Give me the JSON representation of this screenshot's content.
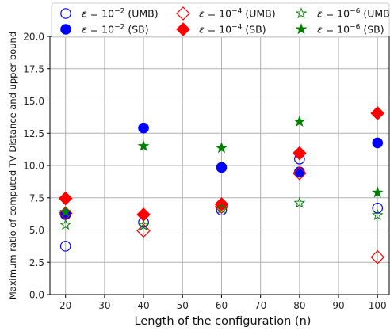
{
  "chart_data": {
    "type": "scatter",
    "xlabel": "Length of the configuration (n)",
    "ylabel": "Maximum ratio of computed TV Distance and upper bound",
    "xlim": [
      16,
      103
    ],
    "ylim": [
      0,
      20
    ],
    "xticks": [
      20,
      30,
      40,
      50,
      60,
      70,
      80,
      90,
      100
    ],
    "yticks": [
      0.0,
      2.5,
      5.0,
      7.5,
      10.0,
      12.5,
      15.0,
      17.5,
      20.0
    ],
    "xtick_labels": [
      "20",
      "30",
      "40",
      "50",
      "60",
      "70",
      "80",
      "90",
      "100"
    ],
    "ytick_labels": [
      "0.0",
      "2.5",
      "5.0",
      "7.5",
      "10.0",
      "12.5",
      "15.0",
      "17.5",
      "20.0"
    ],
    "grid": true,
    "legend_placement": "top, 3 columns",
    "series": [
      {
        "name": "ε = 10⁻² (UMB)",
        "name_base": "ε = 10",
        "name_exp": "−2",
        "name_tail": " (UMB)",
        "marker": "circle",
        "filled": false,
        "color": "#0000ff",
        "x": [
          20,
          40,
          60,
          80,
          100
        ],
        "y": [
          3.75,
          5.6,
          6.55,
          10.5,
          6.7
        ]
      },
      {
        "name": "ε = 10⁻² (SB)",
        "name_base": "ε = 10",
        "name_exp": "−2",
        "name_tail": " (SB)",
        "marker": "circle",
        "filled": true,
        "color": "#0000ff",
        "x": [
          20,
          40,
          60,
          80,
          100
        ],
        "y": [
          6.2,
          12.9,
          9.85,
          9.5,
          11.75
        ]
      },
      {
        "name": "ε = 10⁻⁴ (UMB)",
        "name_base": "ε = 10",
        "name_exp": "−4",
        "name_tail": " (UMB)",
        "marker": "diamond",
        "filled": false,
        "color": "#ff0000",
        "x": [
          20,
          40,
          60,
          80,
          100
        ],
        "y": [
          6.3,
          4.95,
          6.8,
          9.4,
          2.9
        ]
      },
      {
        "name": "ε = 10⁻⁴ (SB)",
        "name_base": "ε = 10",
        "name_exp": "−4",
        "name_tail": " (SB)",
        "marker": "diamond",
        "filled": true,
        "color": "#ff0000",
        "x": [
          20,
          40,
          60,
          80,
          100
        ],
        "y": [
          7.45,
          6.2,
          7.0,
          10.95,
          14.05
        ]
      },
      {
        "name": "ε = 10⁻⁶ (UMB",
        "name_base": "ε = 10",
        "name_exp": "−6",
        "name_tail": " (UMB",
        "marker": "star",
        "filled": false,
        "color": "#008000",
        "x": [
          20,
          40,
          60,
          80,
          100
        ],
        "y": [
          5.4,
          5.35,
          6.65,
          7.1,
          6.15
        ]
      },
      {
        "name": "ε = 10⁻⁶ (SB)",
        "name_base": "ε = 10",
        "name_exp": "−6",
        "name_tail": " (SB)",
        "marker": "star",
        "filled": true,
        "color": "#008000",
        "x": [
          20,
          40,
          60,
          80,
          100
        ],
        "y": [
          6.4,
          11.5,
          11.35,
          13.4,
          7.9
        ]
      }
    ]
  }
}
